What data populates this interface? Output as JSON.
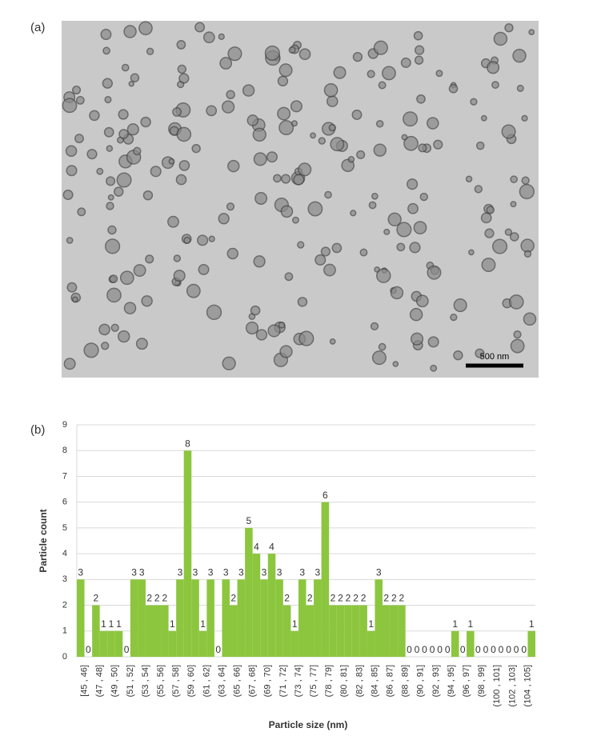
{
  "panels": {
    "a": "(a)",
    "b": "(b)"
  },
  "micrograph": {
    "scale_bar": "500 nm"
  },
  "chart_data": {
    "type": "bar",
    "xlabel": "Particle size (nm)",
    "ylabel": "Particle count",
    "categories": [
      "[45 , 46]",
      null,
      "(47 , 48]",
      null,
      "(49 , 50]",
      null,
      "(51 , 52]",
      null,
      "(53 , 54]",
      null,
      "(55 , 56]",
      null,
      "(57 , 58]",
      null,
      "(59 , 60]",
      null,
      "(61 , 62]",
      null,
      "(63 , 64]",
      null,
      "(65 , 66]",
      null,
      "(67 , 68]",
      null,
      "(69 , 70]",
      null,
      "(71 , 72]",
      null,
      "(73 , 74]",
      null,
      "(75 , 77]",
      null,
      "(78 , 79]",
      null,
      "(80 , 81]",
      null,
      "(82 , 83]",
      null,
      "(84 , 85]",
      null,
      "(86 , 87]",
      null,
      "(88 , 89]",
      null,
      "(90 , 91]",
      null,
      "(92 , 93]",
      null,
      "(94 , 95]",
      null,
      "(96 , 97]",
      null,
      "(98 , 99]",
      null,
      "(100 , 101]",
      null,
      "(102 , 103]",
      null,
      "(104 , 105]",
      null
    ],
    "values": [
      3,
      0,
      2,
      1,
      1,
      1,
      0,
      3,
      3,
      2,
      2,
      2,
      1,
      3,
      8,
      3,
      1,
      3,
      0,
      3,
      2,
      3,
      5,
      4,
      3,
      4,
      3,
      2,
      1,
      3,
      2,
      3,
      6,
      2,
      2,
      2,
      2,
      2,
      1,
      3,
      2,
      2,
      2,
      0,
      0,
      0,
      0,
      0,
      0,
      1,
      0,
      1,
      0,
      0,
      0,
      0,
      0,
      0,
      0,
      1
    ],
    "color": "#8cc63e",
    "ylim": [
      0,
      9
    ],
    "yticks": [
      0,
      1,
      2,
      3,
      4,
      5,
      6,
      7,
      8,
      9
    ],
    "grid": true
  }
}
